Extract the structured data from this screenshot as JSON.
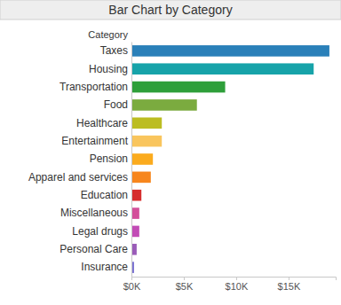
{
  "chart_data": {
    "type": "bar",
    "orientation": "horizontal",
    "title": "Bar Chart by Category",
    "ylabel": "Category",
    "categories": [
      "Taxes",
      "Housing",
      "Transportation",
      "Food",
      "Healthcare",
      "Entertainment",
      "Pension",
      "Apparel and services",
      "Education",
      "Miscellaneous",
      "Legal drugs",
      "Personal Care",
      "Insurance"
    ],
    "values": [
      18900,
      17400,
      8950,
      6250,
      2900,
      2900,
      2050,
      1850,
      950,
      750,
      750,
      500,
      250
    ],
    "colors": [
      "#2a80b9",
      "#17a3a9",
      "#2e9f3a",
      "#7bab3f",
      "#bcbd22",
      "#f9c55d",
      "#fbab1e",
      "#f7861d",
      "#d62f2f",
      "#d34f9a",
      "#c24bb6",
      "#9a5bb8",
      "#7a72d2"
    ],
    "xlim": [
      0,
      19500
    ],
    "xticks": [
      {
        "value": 0,
        "label": "$0K"
      },
      {
        "value": 5000,
        "label": "$5K"
      },
      {
        "value": 10000,
        "label": "$10K"
      },
      {
        "value": 15000,
        "label": "$15K"
      }
    ],
    "grid": false
  }
}
